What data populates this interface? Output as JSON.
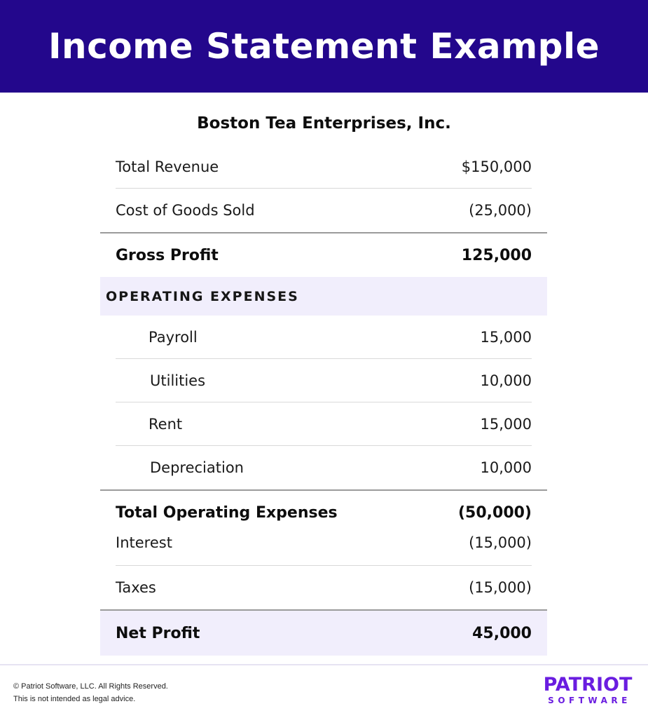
{
  "header": {
    "title": "Income Statement Example"
  },
  "company": "Boston Tea Enterprises, Inc.",
  "revenue": [
    {
      "label": "Total Revenue",
      "value": "$150,000"
    },
    {
      "label": "Cost of Goods Sold",
      "value": "(25,000)"
    }
  ],
  "gross_profit": {
    "label": "Gross Profit",
    "value": "125,000"
  },
  "operating_expenses": {
    "heading": "OPERATING EXPENSES",
    "items": [
      {
        "label": "Payroll",
        "value": "15,000"
      },
      {
        "label": "Utilities",
        "value": "10,000"
      },
      {
        "label": "Rent",
        "value": "15,000"
      },
      {
        "label": "Depreciation",
        "value": "10,000"
      }
    ],
    "total": {
      "label": "Total Operating Expenses",
      "value": "(50,000)"
    }
  },
  "other": [
    {
      "label": "Interest",
      "value": "(15,000)"
    },
    {
      "label": "Taxes",
      "value": "(15,000)"
    }
  ],
  "net_profit": {
    "label": "Net Profit",
    "value": "45,000"
  },
  "footer": {
    "copyright": "© Patriot Software, LLC. All Rights Reserved.",
    "disclaimer": "This is not intended as legal advice.",
    "logo_top": "PATRIOT",
    "logo_bottom": "SOFTWARE"
  },
  "colors": {
    "banner": "#23078c",
    "highlight": "#f1eefc",
    "brand": "#6a1de0"
  }
}
